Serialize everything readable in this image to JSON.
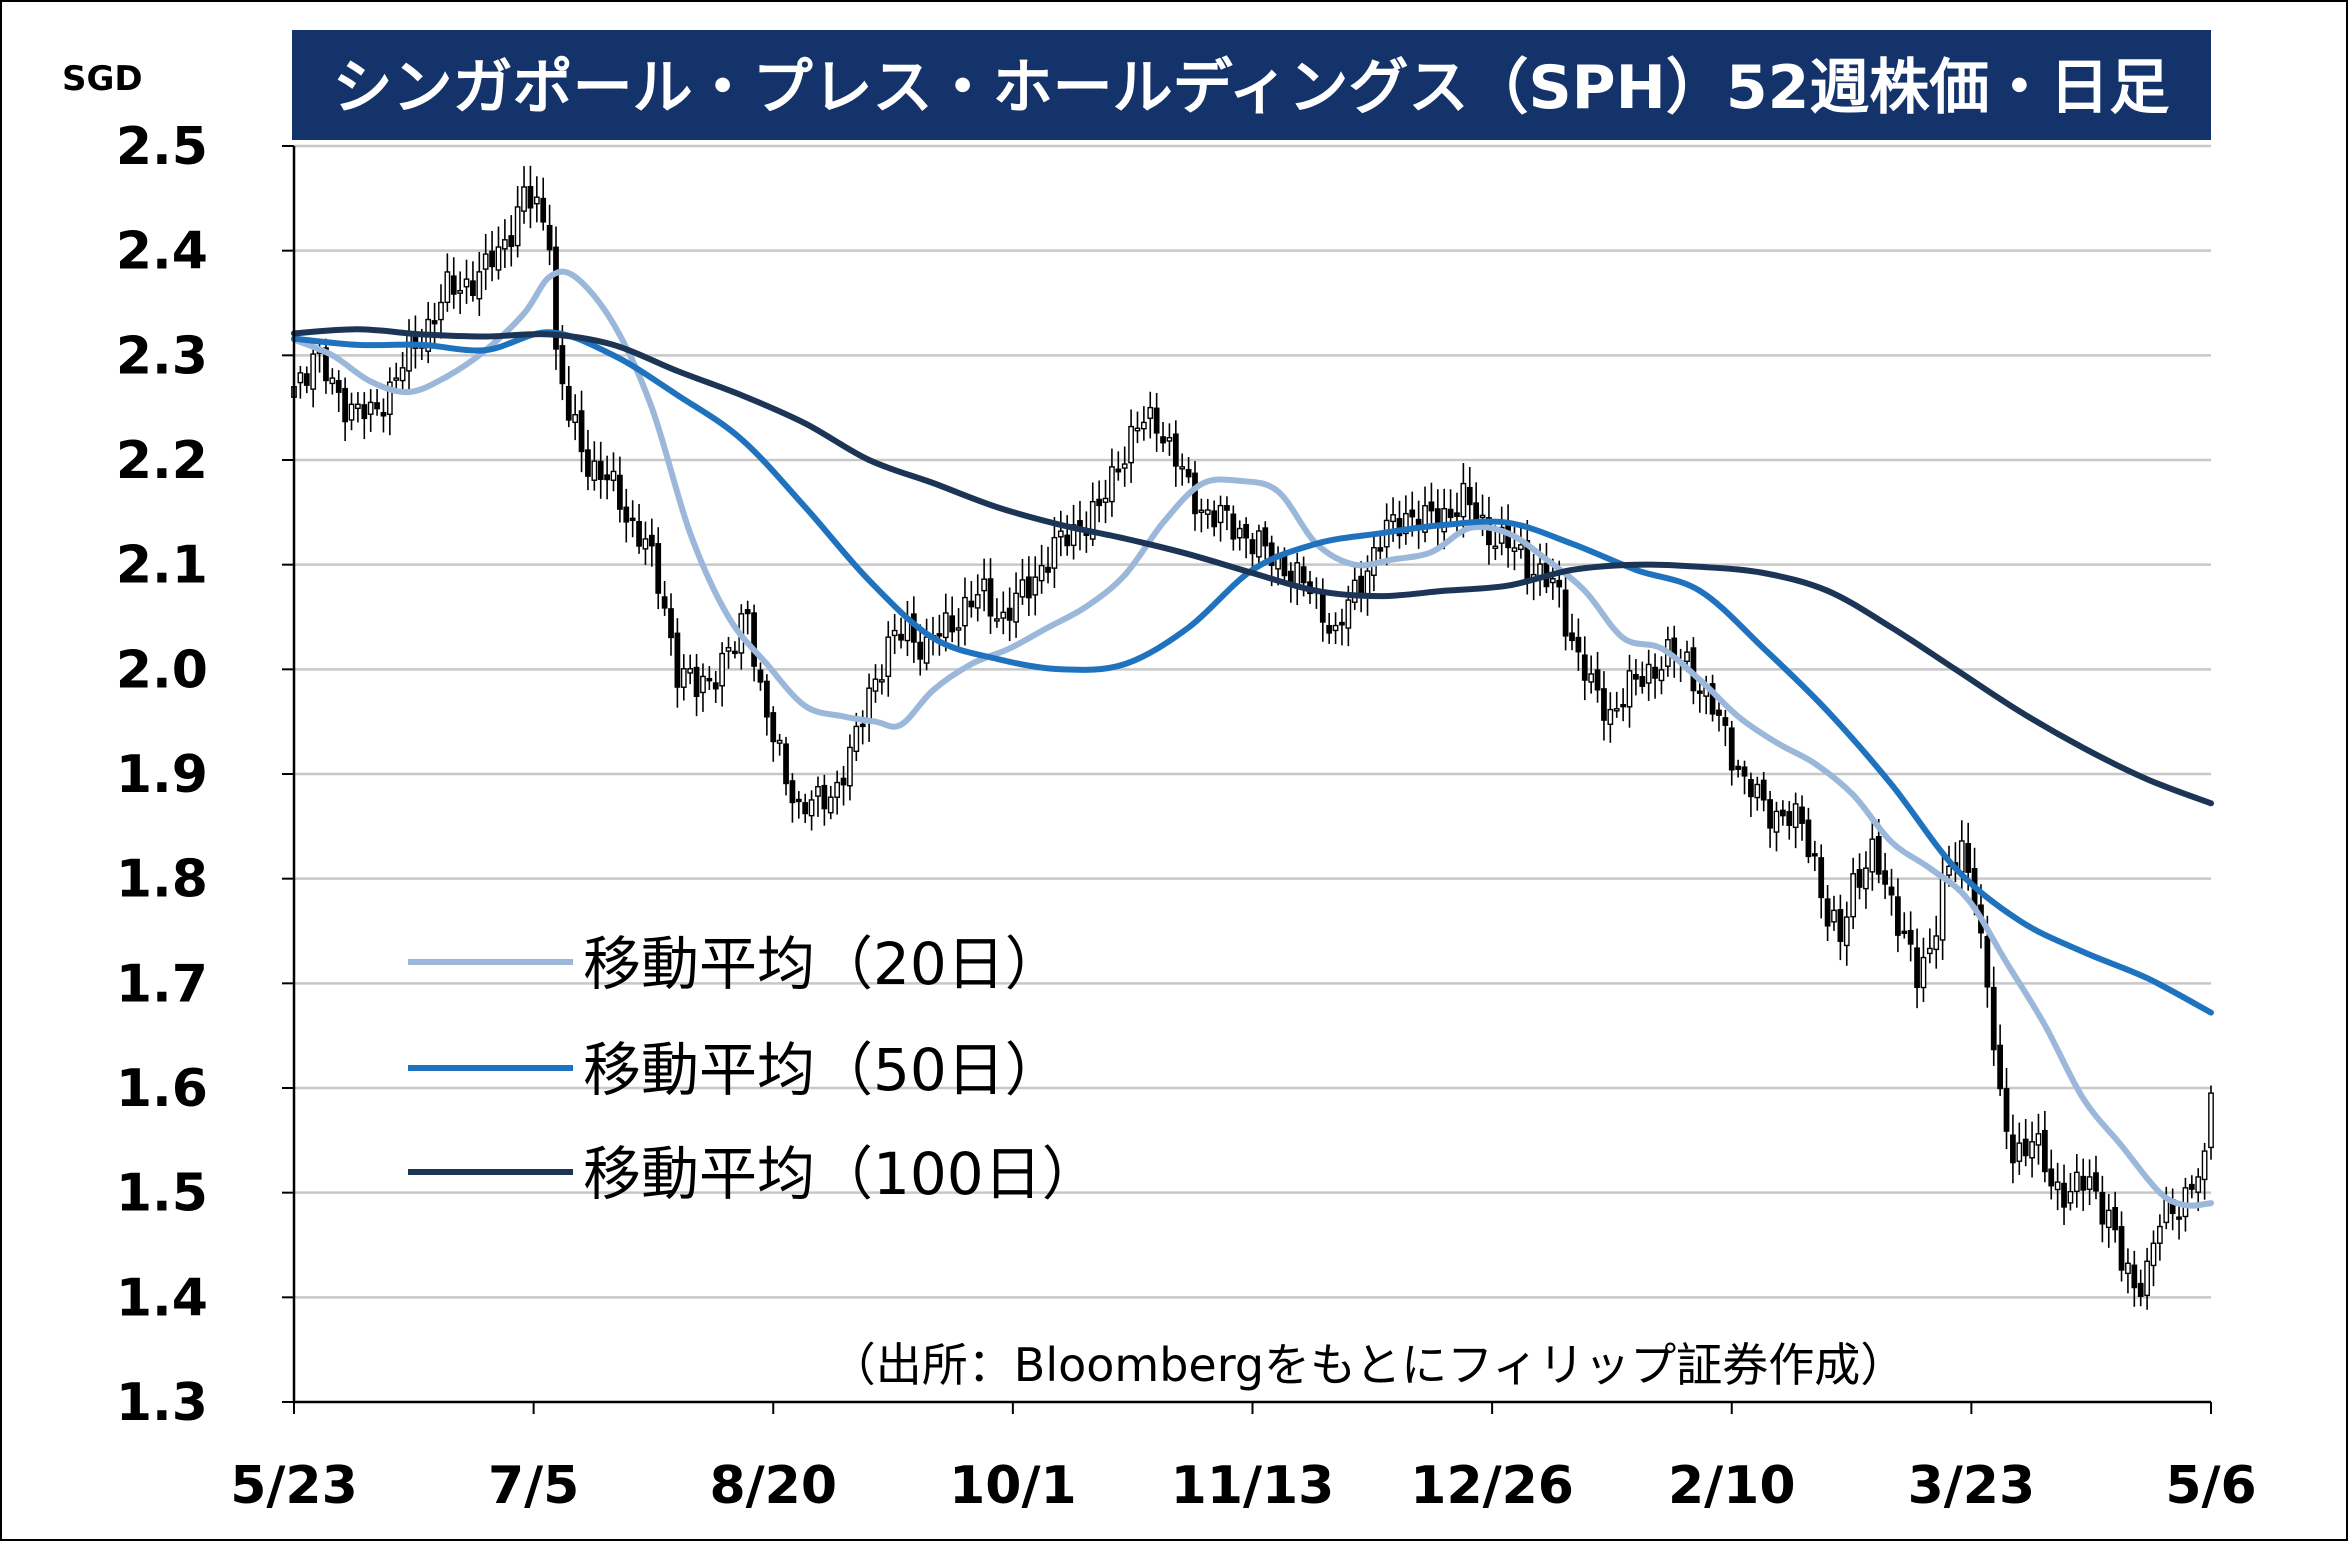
{
  "chart_data": {
    "type": "candlestick",
    "title": "シンガポール・プレス・ホールディングス（SPH）52週株価・日足",
    "y_unit": "SGD",
    "ylim": [
      1.3,
      2.5
    ],
    "y_ticks": [
      "2.5",
      "2.4",
      "2.3",
      "2.2",
      "2.1",
      "2.0",
      "1.9",
      "1.8",
      "1.7",
      "1.6",
      "1.5",
      "1.4",
      "1.3"
    ],
    "x_ticks": [
      "5/23",
      "7/5",
      "8/20",
      "10/1",
      "11/13",
      "12/26",
      "2/10",
      "3/23",
      "5/6"
    ],
    "grid": true,
    "legend_position": "left-center",
    "source": "（出所：Bloombergをもとにフィリップ証券作成）",
    "colors": {
      "title_bg": "#14336b",
      "title_text": "#ffffff",
      "grid": "#c8c8c8",
      "candle": "#000000",
      "ma20": "#9bb7d9",
      "ma50": "#1f73be",
      "ma100": "#1c3557"
    },
    "close_anchors": [
      [
        0,
        2.27
      ],
      [
        3,
        2.3
      ],
      [
        6,
        2.27
      ],
      [
        9,
        2.25
      ],
      [
        12,
        2.24
      ],
      [
        15,
        2.27
      ],
      [
        18,
        2.3
      ],
      [
        21,
        2.33
      ],
      [
        24,
        2.36
      ],
      [
        27,
        2.37
      ],
      [
        30,
        2.38
      ],
      [
        33,
        2.41
      ],
      [
        36,
        2.45
      ],
      [
        38,
        2.44
      ],
      [
        40,
        2.42
      ],
      [
        41,
        2.3
      ],
      [
        43,
        2.24
      ],
      [
        46,
        2.2
      ],
      [
        49,
        2.18
      ],
      [
        52,
        2.15
      ],
      [
        55,
        2.12
      ],
      [
        58,
        2.06
      ],
      [
        60,
        2.0
      ],
      [
        63,
        1.98
      ],
      [
        66,
        2.0
      ],
      [
        69,
        2.02
      ],
      [
        71,
        2.06
      ],
      [
        73,
        1.98
      ],
      [
        75,
        1.93
      ],
      [
        77,
        1.9
      ],
      [
        79,
        1.87
      ],
      [
        82,
        1.87
      ],
      [
        85,
        1.89
      ],
      [
        88,
        1.93
      ],
      [
        90,
        1.98
      ],
      [
        93,
        2.02
      ],
      [
        96,
        2.04
      ],
      [
        99,
        2.02
      ],
      [
        102,
        2.04
      ],
      [
        105,
        2.06
      ],
      [
        108,
        2.07
      ],
      [
        111,
        2.05
      ],
      [
        114,
        2.07
      ],
      [
        117,
        2.1
      ],
      [
        120,
        2.12
      ],
      [
        123,
        2.14
      ],
      [
        126,
        2.15
      ],
      [
        129,
        2.2
      ],
      [
        132,
        2.23
      ],
      [
        135,
        2.24
      ],
      [
        138,
        2.2
      ],
      [
        140,
        2.17
      ],
      [
        143,
        2.15
      ],
      [
        146,
        2.14
      ],
      [
        149,
        2.13
      ],
      [
        152,
        2.11
      ],
      [
        155,
        2.1
      ],
      [
        158,
        2.08
      ],
      [
        161,
        2.06
      ],
      [
        163,
        2.03
      ],
      [
        165,
        2.06
      ],
      [
        168,
        2.1
      ],
      [
        171,
        2.13
      ],
      [
        174,
        2.15
      ],
      [
        177,
        2.14
      ],
      [
        180,
        2.15
      ],
      [
        183,
        2.16
      ],
      [
        186,
        2.14
      ],
      [
        189,
        2.12
      ],
      [
        192,
        2.11
      ],
      [
        195,
        2.09
      ],
      [
        198,
        2.07
      ],
      [
        200,
        2.03
      ],
      [
        203,
        1.98
      ],
      [
        206,
        1.96
      ],
      [
        209,
        1.98
      ],
      [
        212,
        2.0
      ],
      [
        215,
        2.01
      ],
      [
        218,
        2.01
      ],
      [
        221,
        1.97
      ],
      [
        224,
        1.94
      ],
      [
        227,
        1.89
      ],
      [
        230,
        1.87
      ],
      [
        233,
        1.86
      ],
      [
        236,
        1.85
      ],
      [
        238,
        1.82
      ],
      [
        240,
        1.76
      ],
      [
        242,
        1.74
      ],
      [
        244,
        1.8
      ],
      [
        247,
        1.82
      ],
      [
        250,
        1.78
      ],
      [
        252,
        1.75
      ],
      [
        254,
        1.7
      ],
      [
        256,
        1.73
      ],
      [
        258,
        1.8
      ],
      [
        261,
        1.82
      ],
      [
        263,
        1.79
      ],
      [
        265,
        1.7
      ],
      [
        267,
        1.58
      ],
      [
        269,
        1.54
      ],
      [
        272,
        1.55
      ],
      [
        275,
        1.51
      ],
      [
        278,
        1.5
      ],
      [
        281,
        1.51
      ],
      [
        284,
        1.48
      ],
      [
        286,
        1.43
      ],
      [
        288,
        1.41
      ],
      [
        290,
        1.43
      ],
      [
        292,
        1.47
      ],
      [
        295,
        1.49
      ],
      [
        297,
        1.51
      ],
      [
        299,
        1.52
      ],
      [
        300,
        1.6
      ]
    ],
    "series": [
      {
        "name": "移動平均（20日）",
        "style": "line",
        "color": "#9bb7d9",
        "points": [
          [
            0,
            2.315
          ],
          [
            6,
            2.3
          ],
          [
            12,
            2.275
          ],
          [
            18,
            2.265
          ],
          [
            24,
            2.28
          ],
          [
            30,
            2.305
          ],
          [
            36,
            2.34
          ],
          [
            40,
            2.375
          ],
          [
            44,
            2.375
          ],
          [
            50,
            2.33
          ],
          [
            56,
            2.25
          ],
          [
            62,
            2.13
          ],
          [
            68,
            2.05
          ],
          [
            74,
            2.005
          ],
          [
            80,
            1.965
          ],
          [
            86,
            1.955
          ],
          [
            91,
            1.95
          ],
          [
            95,
            1.947
          ],
          [
            100,
            1.98
          ],
          [
            106,
            2.005
          ],
          [
            112,
            2.02
          ],
          [
            118,
            2.04
          ],
          [
            124,
            2.06
          ],
          [
            130,
            2.09
          ],
          [
            136,
            2.14
          ],
          [
            142,
            2.177
          ],
          [
            148,
            2.18
          ],
          [
            154,
            2.17
          ],
          [
            160,
            2.12
          ],
          [
            166,
            2.1
          ],
          [
            172,
            2.105
          ],
          [
            178,
            2.112
          ],
          [
            184,
            2.135
          ],
          [
            190,
            2.13
          ],
          [
            196,
            2.105
          ],
          [
            202,
            2.075
          ],
          [
            208,
            2.03
          ],
          [
            214,
            2.02
          ],
          [
            220,
            1.99
          ],
          [
            226,
            1.955
          ],
          [
            232,
            1.93
          ],
          [
            238,
            1.91
          ],
          [
            244,
            1.88
          ],
          [
            250,
            1.835
          ],
          [
            256,
            1.81
          ],
          [
            262,
            1.78
          ],
          [
            268,
            1.72
          ],
          [
            274,
            1.66
          ],
          [
            280,
            1.59
          ],
          [
            286,
            1.545
          ],
          [
            292,
            1.5
          ],
          [
            296,
            1.488
          ],
          [
            300,
            1.49
          ]
        ]
      },
      {
        "name": "移動平均（50日）",
        "style": "line",
        "color": "#1f73be",
        "points": [
          [
            0,
            2.316
          ],
          [
            10,
            2.31
          ],
          [
            20,
            2.31
          ],
          [
            30,
            2.305
          ],
          [
            40,
            2.322
          ],
          [
            50,
            2.3
          ],
          [
            60,
            2.262
          ],
          [
            70,
            2.22
          ],
          [
            80,
            2.155
          ],
          [
            90,
            2.085
          ],
          [
            100,
            2.03
          ],
          [
            110,
            2.01
          ],
          [
            120,
            2.0
          ],
          [
            130,
            2.005
          ],
          [
            140,
            2.04
          ],
          [
            150,
            2.095
          ],
          [
            160,
            2.12
          ],
          [
            170,
            2.13
          ],
          [
            180,
            2.138
          ],
          [
            190,
            2.14
          ],
          [
            200,
            2.12
          ],
          [
            210,
            2.095
          ],
          [
            220,
            2.075
          ],
          [
            230,
            2.02
          ],
          [
            240,
            1.96
          ],
          [
            250,
            1.89
          ],
          [
            260,
            1.81
          ],
          [
            270,
            1.76
          ],
          [
            280,
            1.73
          ],
          [
            290,
            1.705
          ],
          [
            300,
            1.672
          ]
        ]
      },
      {
        "name": "移動平均（100日）",
        "style": "line",
        "color": "#1c3557",
        "points": [
          [
            0,
            2.321
          ],
          [
            10,
            2.325
          ],
          [
            20,
            2.32
          ],
          [
            30,
            2.318
          ],
          [
            40,
            2.32
          ],
          [
            50,
            2.31
          ],
          [
            60,
            2.285
          ],
          [
            70,
            2.262
          ],
          [
            80,
            2.235
          ],
          [
            90,
            2.2
          ],
          [
            100,
            2.178
          ],
          [
            110,
            2.155
          ],
          [
            120,
            2.138
          ],
          [
            130,
            2.125
          ],
          [
            140,
            2.11
          ],
          [
            150,
            2.092
          ],
          [
            160,
            2.075
          ],
          [
            170,
            2.07
          ],
          [
            180,
            2.075
          ],
          [
            190,
            2.08
          ],
          [
            200,
            2.095
          ],
          [
            210,
            2.1
          ],
          [
            220,
            2.098
          ],
          [
            230,
            2.092
          ],
          [
            240,
            2.075
          ],
          [
            250,
            2.04
          ],
          [
            260,
            2.0
          ],
          [
            270,
            1.96
          ],
          [
            280,
            1.925
          ],
          [
            290,
            1.895
          ],
          [
            300,
            1.872
          ]
        ]
      }
    ]
  }
}
